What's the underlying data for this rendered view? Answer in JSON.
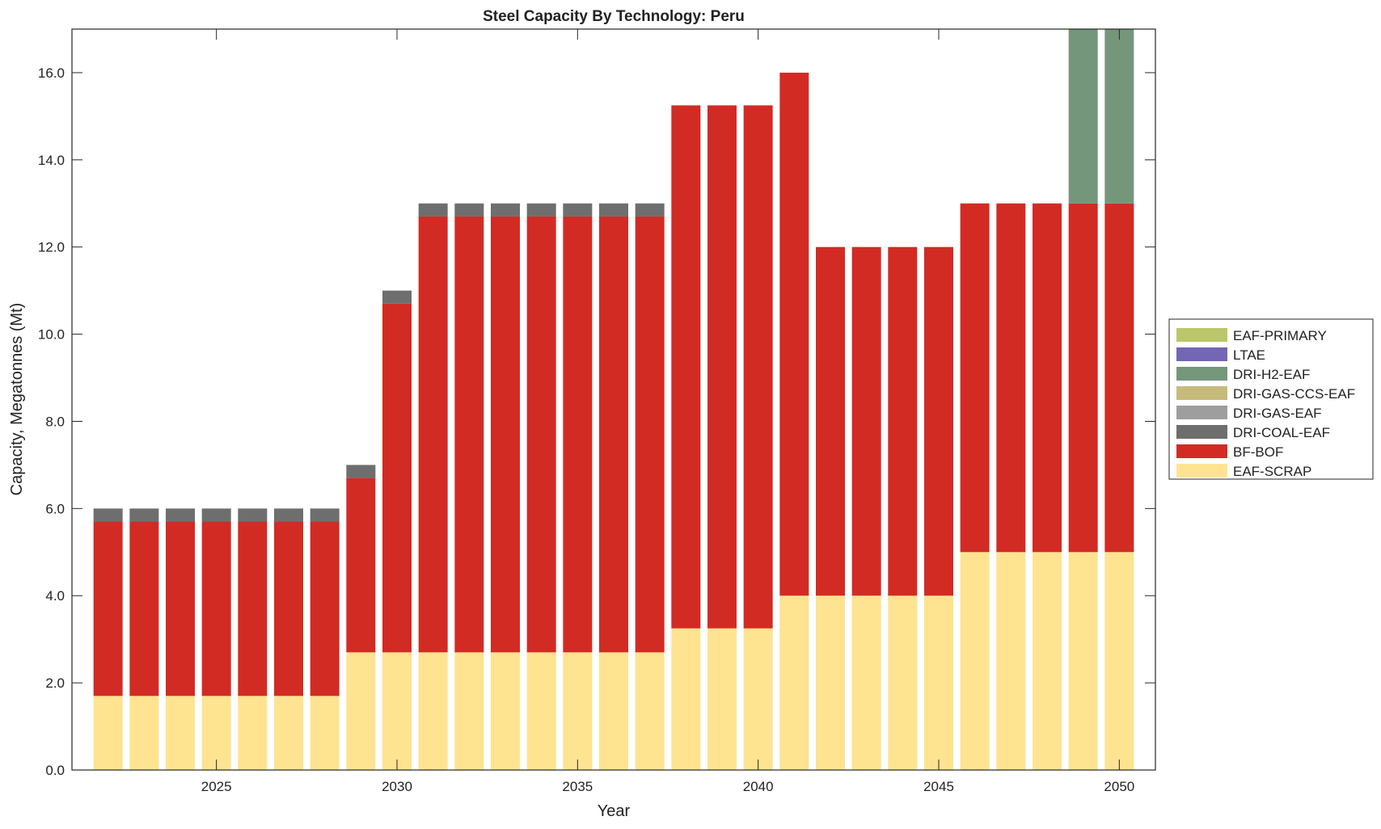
{
  "chart_data": {
    "type": "bar",
    "stacked": true,
    "title": "Steel Capacity By Technology: Peru",
    "xlabel": "Year",
    "ylabel": "Capacity, Megatonnes (Mt)",
    "xlim": [
      2021,
      2051
    ],
    "ylim": [
      0,
      17
    ],
    "xticks": [
      2025,
      2030,
      2035,
      2040,
      2045,
      2050
    ],
    "yticks": [
      0,
      2,
      4,
      6,
      8,
      10,
      12,
      14,
      16
    ],
    "ytick_labels": [
      "0.0",
      "2.0",
      "4.0",
      "6.0",
      "8.0",
      "10.0",
      "12.0",
      "14.0",
      "16.0"
    ],
    "grid": false,
    "legend_position": "right",
    "categories": [
      2022,
      2023,
      2024,
      2025,
      2026,
      2027,
      2028,
      2029,
      2030,
      2031,
      2032,
      2033,
      2034,
      2035,
      2036,
      2037,
      2038,
      2039,
      2040,
      2041,
      2042,
      2043,
      2044,
      2045,
      2046,
      2047,
      2048,
      2049,
      2050
    ],
    "series": [
      {
        "name": "EAF-SCRAP",
        "color": "#fee391",
        "values": [
          1.7,
          1.7,
          1.7,
          1.7,
          1.7,
          1.7,
          1.7,
          2.7,
          2.7,
          2.7,
          2.7,
          2.7,
          2.7,
          2.7,
          2.7,
          2.7,
          3.25,
          3.25,
          3.25,
          4,
          4,
          4,
          4,
          4,
          5,
          5,
          5,
          5,
          5
        ]
      },
      {
        "name": "BF-BOF",
        "color": "#d22b24",
        "values": [
          4,
          4,
          4,
          4,
          4,
          4,
          4,
          4,
          8,
          10,
          10,
          10,
          10,
          10,
          10,
          10,
          12,
          12,
          12,
          12,
          8,
          8,
          8,
          8,
          8,
          8,
          8,
          8,
          8
        ]
      },
      {
        "name": "DRI-COAL-EAF",
        "color": "#6e6e6e",
        "values": [
          0.3,
          0.3,
          0.3,
          0.3,
          0.3,
          0.3,
          0.3,
          0.3,
          0.3,
          0.3,
          0.3,
          0.3,
          0.3,
          0.3,
          0.3,
          0.3,
          0,
          0,
          0,
          0,
          0,
          0,
          0,
          0,
          0,
          0,
          0,
          0,
          0
        ]
      },
      {
        "name": "DRI-GAS-EAF",
        "color": "#9e9e9e",
        "values": [
          0,
          0,
          0,
          0,
          0,
          0,
          0,
          0,
          0,
          0,
          0,
          0,
          0,
          0,
          0,
          0,
          0,
          0,
          0,
          0,
          0,
          0,
          0,
          0,
          0,
          0,
          0,
          0,
          0
        ]
      },
      {
        "name": "DRI-GAS-CCS-EAF",
        "color": "#c6bb7b",
        "values": [
          0,
          0,
          0,
          0,
          0,
          0,
          0,
          0,
          0,
          0,
          0,
          0,
          0,
          0,
          0,
          0,
          0,
          0,
          0,
          0,
          0,
          0,
          0,
          0,
          0,
          0,
          0,
          0,
          0
        ]
      },
      {
        "name": "DRI-H2-EAF",
        "color": "#74977c",
        "values": [
          0,
          0,
          0,
          0,
          0,
          0,
          0,
          0,
          0,
          0,
          0,
          0,
          0,
          0,
          0,
          0,
          0,
          0,
          0,
          0,
          0,
          0,
          0,
          0,
          0,
          0,
          0,
          5,
          5
        ]
      },
      {
        "name": "LTAE",
        "color": "#7266b5",
        "values": [
          0,
          0,
          0,
          0,
          0,
          0,
          0,
          0,
          0,
          0,
          0,
          0,
          0,
          0,
          0,
          0,
          0,
          0,
          0,
          0,
          0,
          0,
          0,
          0,
          0,
          0,
          0,
          0,
          0
        ]
      },
      {
        "name": "EAF-PRIMARY",
        "color": "#bcc66a",
        "values": [
          0,
          0,
          0,
          0,
          0,
          0,
          0,
          0,
          0,
          0,
          0,
          0,
          0,
          0,
          0,
          0,
          0,
          0,
          0,
          0,
          0,
          0,
          0,
          0,
          0,
          0,
          0,
          0,
          0
        ]
      }
    ],
    "legend_order": [
      "EAF-PRIMARY",
      "LTAE",
      "DRI-H2-EAF",
      "DRI-GAS-CCS-EAF",
      "DRI-GAS-EAF",
      "DRI-COAL-EAF",
      "BF-BOF",
      "EAF-SCRAP"
    ]
  }
}
